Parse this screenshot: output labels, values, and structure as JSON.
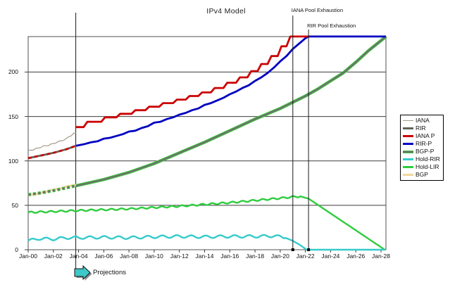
{
  "chart_data": {
    "type": "line",
    "title": "IPv4 Model",
    "projections_label": "Projections",
    "projection_start_year": 3.78,
    "x_axis": {
      "labels": [
        "Jan-00",
        "Jan-02",
        "Jan-04",
        "Jan-06",
        "Jan-08",
        "Jan-10",
        "Jan-12",
        "Jan-14",
        "Jan-16",
        "Jan-18",
        "Jan-20",
        "Jan-22",
        "Jan-24",
        "Jan-26",
        "Jan-28"
      ],
      "tick_interval_years": 2,
      "start_year": 0,
      "end_year": 28.4
    },
    "y_axis": {
      "ticks": [
        0,
        50,
        100,
        150,
        200
      ],
      "max": 240,
      "grid": true
    },
    "events": [
      {
        "label": "IANA Pool Exhaustion",
        "year": 21.0
      },
      {
        "label": "RIR Pool Exhaustion",
        "year": 22.25
      }
    ],
    "legend": [
      {
        "label": "IANA",
        "color": "#a39a8a",
        "width": 1.5
      },
      {
        "label": "RIR",
        "color": "#62625a",
        "width": 3
      },
      {
        "label": "IANA P",
        "color": "#cc0000",
        "width": 3
      },
      {
        "label": "RIR-P",
        "color": "#0000c0",
        "width": 3
      },
      {
        "label": "BGP-P",
        "color": "#6e6e6e",
        "outline": "#3fc53f",
        "width": 4
      },
      {
        "label": "Hold-RIR",
        "color": "#35cbcb",
        "width": 2.5
      },
      {
        "label": "Hold-LIR",
        "color": "#2ecc3e",
        "width": 2.5
      },
      {
        "label": "BGP",
        "color": "#f2d79c",
        "width": 3
      }
    ],
    "series": [
      {
        "name": "rir",
        "label": "RIR",
        "color": "#62625a",
        "width": 2.8,
        "points": [
          [
            0,
            103
          ],
          [
            0.5,
            104.5
          ],
          [
            1,
            106
          ],
          [
            1.5,
            107.5
          ],
          [
            2,
            109
          ],
          [
            2.5,
            111
          ],
          [
            3,
            113
          ],
          [
            3.4,
            115
          ],
          [
            3.8,
            117
          ]
        ]
      },
      {
        "name": "iana-p-backcast",
        "label": "IANA P (backcast)",
        "color": "#cc0000",
        "width": 2.8,
        "dash": "5 4",
        "points": [
          [
            0,
            103
          ],
          [
            0.5,
            104.5
          ],
          [
            1,
            106
          ],
          [
            1.5,
            107.5
          ],
          [
            2,
            109
          ],
          [
            2.5,
            111
          ],
          [
            3,
            113
          ],
          [
            3.4,
            115
          ],
          [
            3.8,
            117
          ]
        ]
      },
      {
        "name": "iana",
        "label": "IANA",
        "color": "#a39a8a",
        "width": 1.2,
        "points": [
          [
            0,
            112
          ],
          [
            0.4,
            112
          ],
          [
            0.6,
            114
          ],
          [
            1,
            115
          ],
          [
            1.2,
            117
          ],
          [
            1.6,
            117
          ],
          [
            1.8,
            119
          ],
          [
            2.2,
            120
          ],
          [
            2.4,
            122
          ],
          [
            2.8,
            123
          ],
          [
            3,
            125
          ],
          [
            3.2,
            127
          ],
          [
            3.4,
            128
          ],
          [
            3.6,
            131
          ],
          [
            3.8,
            131.5
          ]
        ]
      },
      {
        "name": "bgp",
        "label": "BGP",
        "color": "#f2d79c",
        "width": 3.2,
        "points": [
          [
            0,
            61
          ],
          [
            0.3,
            62
          ],
          [
            0.6,
            62.5
          ],
          [
            1,
            64
          ],
          [
            1.4,
            65
          ],
          [
            1.8,
            67
          ],
          [
            2.2,
            68
          ],
          [
            2.6,
            69
          ],
          [
            3,
            71
          ],
          [
            3.4,
            72
          ],
          [
            3.8,
            73
          ]
        ]
      },
      {
        "name": "bgp-p-backcast",
        "label": "BGP-P (backcast)",
        "color": "#6e6e6e",
        "outline": "#3fc53f",
        "width": 2.2,
        "dash": "4 3",
        "points": [
          [
            0,
            62
          ],
          [
            1,
            64
          ],
          [
            2,
            66.5
          ],
          [
            3,
            69.5
          ],
          [
            3.8,
            72
          ]
        ]
      },
      {
        "name": "bgp-p",
        "label": "BGP-P",
        "color": "#6e6e6e",
        "outline": "#3fc53f",
        "width": 2.2,
        "points": [
          [
            3.8,
            72
          ],
          [
            6,
            79
          ],
          [
            8,
            87
          ],
          [
            10,
            97
          ],
          [
            12,
            109
          ],
          [
            14,
            121
          ],
          [
            16,
            134
          ],
          [
            18,
            147
          ],
          [
            20,
            159
          ],
          [
            21,
            166
          ],
          [
            22,
            173
          ],
          [
            23,
            181
          ],
          [
            24,
            190
          ],
          [
            25,
            199
          ],
          [
            26,
            211
          ],
          [
            27,
            224
          ],
          [
            28.4,
            240
          ]
        ]
      },
      {
        "name": "hold-lir",
        "label": "Hold-LIR",
        "color": "#2ecc3e",
        "width": 2.4,
        "wiggle": {
          "amp": 0.9,
          "period": 0.8,
          "until": 21.6
        },
        "points": [
          [
            0,
            42
          ],
          [
            2,
            43
          ],
          [
            3.8,
            44
          ],
          [
            6,
            45
          ],
          [
            8,
            46
          ],
          [
            10,
            47.5
          ],
          [
            12,
            49
          ],
          [
            14,
            51
          ],
          [
            16,
            53
          ],
          [
            18,
            55.5
          ],
          [
            20,
            58
          ],
          [
            21,
            59.5
          ],
          [
            21.6,
            60
          ],
          [
            22.25,
            57.5
          ],
          [
            28.3,
            0
          ]
        ]
      },
      {
        "name": "hold-rir",
        "label": "Hold-RIR",
        "color": "#35cbcb",
        "width": 2.4,
        "wiggle": {
          "amp": 1.5,
          "period": 1.15,
          "until": 20.3
        },
        "points": [
          [
            0,
            10
          ],
          [
            0.8,
            12.5
          ],
          [
            2,
            12
          ],
          [
            3,
            13.5
          ],
          [
            3.8,
            13.5
          ],
          [
            6,
            14
          ],
          [
            8,
            13.5
          ],
          [
            10,
            14.5
          ],
          [
            12,
            15
          ],
          [
            14,
            14.5
          ],
          [
            16,
            15
          ],
          [
            18,
            15
          ],
          [
            19.5,
            15.5
          ],
          [
            20.3,
            14
          ],
          [
            21,
            10
          ],
          [
            21.5,
            6
          ],
          [
            22.1,
            0
          ],
          [
            28.3,
            0
          ]
        ]
      },
      {
        "name": "rir-p",
        "label": "RIR-P",
        "color": "#0000c0",
        "width": 2.8,
        "points": [
          [
            3.8,
            117
          ],
          [
            4.5,
            119
          ],
          [
            5,
            121
          ],
          [
            5.5,
            122
          ],
          [
            6,
            125
          ],
          [
            6.5,
            126
          ],
          [
            7,
            128
          ],
          [
            7.5,
            130
          ],
          [
            8,
            133
          ],
          [
            8.5,
            134
          ],
          [
            9,
            137
          ],
          [
            9.5,
            139
          ],
          [
            10,
            143
          ],
          [
            10.5,
            144
          ],
          [
            11,
            147
          ],
          [
            11.5,
            149
          ],
          [
            12,
            152
          ],
          [
            12.5,
            154
          ],
          [
            13,
            157
          ],
          [
            13.5,
            159
          ],
          [
            14,
            163
          ],
          [
            14.5,
            165
          ],
          [
            15,
            168
          ],
          [
            15.5,
            171
          ],
          [
            16,
            175
          ],
          [
            16.5,
            178
          ],
          [
            17,
            182
          ],
          [
            17.5,
            185
          ],
          [
            18,
            190
          ],
          [
            18.5,
            194
          ],
          [
            19,
            199
          ],
          [
            19.5,
            205
          ],
          [
            20,
            212
          ],
          [
            20.5,
            218
          ],
          [
            21,
            226
          ],
          [
            21.5,
            232
          ],
          [
            22,
            238
          ],
          [
            22.25,
            240
          ],
          [
            28.39,
            240
          ]
        ]
      },
      {
        "name": "iana-p",
        "label": "IANA P",
        "color": "#cc0000",
        "width": 2.8,
        "points": [
          [
            3.8,
            138
          ],
          [
            4.4,
            138
          ],
          [
            4.7,
            144
          ],
          [
            5.8,
            144
          ],
          [
            6.1,
            149
          ],
          [
            7.0,
            149
          ],
          [
            7.3,
            153
          ],
          [
            8.2,
            153
          ],
          [
            8.5,
            157
          ],
          [
            9.3,
            157
          ],
          [
            9.6,
            161
          ],
          [
            10.4,
            161
          ],
          [
            10.7,
            165
          ],
          [
            11.5,
            165
          ],
          [
            11.8,
            169
          ],
          [
            12.5,
            169
          ],
          [
            12.8,
            173
          ],
          [
            13.5,
            173
          ],
          [
            13.8,
            177
          ],
          [
            14.5,
            177
          ],
          [
            14.8,
            182
          ],
          [
            15.5,
            182
          ],
          [
            15.8,
            188
          ],
          [
            16.5,
            188
          ],
          [
            16.8,
            194
          ],
          [
            17.4,
            194
          ],
          [
            17.7,
            201
          ],
          [
            18.2,
            201
          ],
          [
            18.5,
            209
          ],
          [
            19,
            209
          ],
          [
            19.3,
            218
          ],
          [
            19.8,
            218
          ],
          [
            20.1,
            229
          ],
          [
            20.5,
            229
          ],
          [
            20.8,
            240
          ],
          [
            22.25,
            240
          ]
        ]
      }
    ]
  }
}
